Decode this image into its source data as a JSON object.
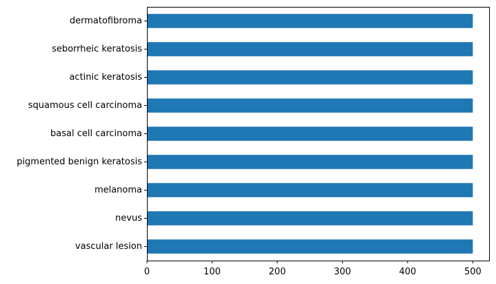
{
  "chart_data": {
    "type": "bar",
    "orientation": "horizontal",
    "categories": [
      "dermatofibroma",
      "seborrheic keratosis",
      "actinic keratosis",
      "squamous cell carcinoma",
      "basal cell carcinoma",
      "pigmented benign keratosis",
      "melanoma",
      "nevus",
      "vascular lesion"
    ],
    "values": [
      500,
      500,
      500,
      500,
      500,
      500,
      500,
      500,
      500
    ],
    "xlim": [
      0,
      525
    ],
    "xticks": [
      0,
      100,
      200,
      300,
      400,
      500
    ],
    "title": "",
    "xlabel": "",
    "ylabel": "",
    "grid": false,
    "legend": "none",
    "bar_color": "#1f77b4"
  }
}
